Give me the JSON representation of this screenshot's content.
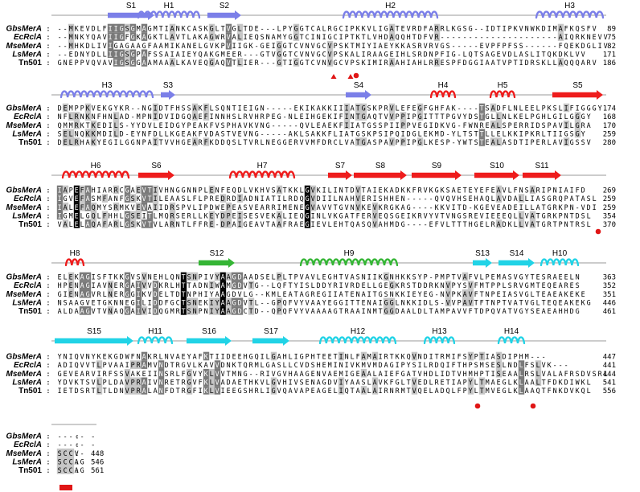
{
  "separator": ":",
  "blocks": [
    {
      "ss": [
        {
          "label": "S1",
          "type": "strand",
          "color": "#7b7fe8"
        },
        {
          "label": "H1",
          "type": "helix",
          "color": "#7b7fe8"
        },
        {
          "label": "S2",
          "type": "strand",
          "color": "#7b7fe8"
        },
        {
          "label": "H2",
          "type": "helix",
          "color": "#7b7fe8"
        },
        {
          "label": "H3",
          "type": "helix",
          "color": "#7b7fe8"
        }
      ],
      "rows": [
        {
          "name": "GbsMerA",
          "seq": "--MKEVDLFIIGSGMAGMTIANKCASKGLTVGLTDE---LPYGGTCALRGCIPKKVLIGATEVRDFARRLKGSG--IDTIPKVNWKDIMAFKQSFV",
          "end": "89"
        },
        {
          "name": "EcRclA",
          "seq": "--MNKYQAVIIGFGKAGKTLAVTLAKAGWRVALIEQSNAMYGGTCINIGCIPTKTLVHDAQQHTDFVR---------------------AIQRKNEVV",
          "end": "75"
        },
        {
          "name": "MseMerA",
          "seq": "--MHKDLIVIGAGAAGFAAMIKANELGVKPVIIGK-GEIGGTCVNVGCVPSKTMIYIAEYKKASRVRVGS-----EVPFPFSS------FQEKDGLIV",
          "end": "82"
        },
        {
          "name": "LsMerA",
          "seq": "--EDNYDLLIIGSGPAFSSAIAIEYQAKGMEER---GTVGGTCVNVGCVPSKALIRAAGEIHLSRDNPFIG-LQTSAGEVDLASLITQKDKLVV",
          "end": "171"
        },
        {
          "name": "Tn501",
          "seq": "GNEPPVQVAVIGSGGAAMAAALKAVEQGAQVTLIER---GTIGGTCVNVGCVPSKIMIRAAHIAHLRRESPFDGGIAATVPTIDRSKLLAQQQARV",
          "end": "186"
        }
      ],
      "markers": [
        {
          "kind": "tri"
        },
        {
          "kind": "tri"
        },
        {
          "kind": "dot"
        }
      ]
    },
    {
      "ss": [
        {
          "label": "H3",
          "type": "helix",
          "color": "#7b7fe8"
        },
        {
          "label": "S3",
          "type": "strand",
          "color": "#7b7fe8"
        },
        {
          "label": "S4",
          "type": "strand",
          "color": "#7b7fe8"
        },
        {
          "label": "H4",
          "type": "helix",
          "color": "#ee1c1c"
        },
        {
          "label": "H5",
          "type": "helix",
          "color": "#ee1c1c"
        },
        {
          "label": "S5",
          "type": "strand",
          "color": "#ee1c1c"
        }
      ],
      "rows": [
        {
          "name": "GbsMerA",
          "seq": "DEMPPKVEKGYKR--NGIDTFHSSAKFLSQNTIEIGN-----EKIKAKKIIIATGSKPRVLEFEGFGHFAK----TSADFLNLEELPKSLIFIGGGY",
          "end": "174"
        },
        {
          "name": "EcRclA",
          "seq": "NFLRNKNFHNLAD-MPNIDVIDGQAEFINNHSLRVHRPEG-NLEIHGEKIFINTGAQTVVPPIPGITTTPGVYDSTGLLNLKELPGHLGILGGGY",
          "end": "168"
        },
        {
          "name": "MseMerA",
          "seq": "QMMRKTKEDILS-YYDVLEIDGYPEAKFVSPHAVKVNG-----QVLEAEKFIIATGSSPIIPPVEGIDKVG-FWNREALSPERRIDSPAVILGRA",
          "end": "170"
        },
        {
          "name": "LsMerA",
          "seq": "SELNQKKMDILD-EYNFDLLKGEAKFVDASTVEVNG-----AKLSAKKFLIATGSKPSIPQIDGLEKMD-YLTSTTLLELKKIPKRLTIIGSGY",
          "end": "259"
        },
        {
          "name": "Tn501",
          "seq": "DELRHAKYEGILGGNPAITVVHGEARFKDDQSLTVRLNEGGERVVMFDRCLVATGASPAVPPIPGLKESP-YWTSTEALASDTIPERLAVIGSSV",
          "end": "280"
        }
      ],
      "markers": [
        {
          "kind": "dot"
        }
      ]
    },
    {
      "ss": [
        {
          "label": "H6",
          "type": "helix",
          "color": "#ee1c1c"
        },
        {
          "label": "S6",
          "type": "strand",
          "color": "#ee1c1c"
        },
        {
          "label": "H7",
          "type": "helix",
          "color": "#ee1c1c"
        },
        {
          "label": "S7",
          "type": "strand",
          "color": "#ee1c1c"
        },
        {
          "label": "S8",
          "type": "strand",
          "color": "#ee1c1c"
        },
        {
          "label": "S9",
          "type": "strand",
          "color": "#ee1c1c"
        },
        {
          "label": "S10",
          "type": "strand",
          "color": "#ee1c1c"
        },
        {
          "label": "S11",
          "type": "strand",
          "color": "#ee1c1c"
        }
      ],
      "rows": [
        {
          "name": "GbsMerA",
          "seq": "IAPEFAHIARRCGAEVTIVHNGGNNPLENFEQDLVKHVSATKKLGVKILINTDVTAIEKADKKFRVKGKSAETEYEFEAVLFNSARIPNIAIFD",
          "end": "269"
        },
        {
          "name": "EcRclA",
          "seq": "IGVEFASMFANFGSKVTILEAASLFLPREDRDIADNIATILRDQGVDIILNAHVERISHHEN-----QVQVHSEHAQLAVDALLIASGRQPATASL",
          "end": "259"
        },
        {
          "name": "MseMerA",
          "seq": "IALEFAQMYSRMKVEVAIIDRSPVLIPDWEPEASVEARRIMENEGVAVVTGVNVKEVKRGKAG----KKVITD-KGEVEADEILLATGRKPN-VDI",
          "end": "259"
        },
        {
          "name": "LsMerA",
          "seq": "IGMELGQLFHHLGSEITLMQRSERLLKEYDPEISESVEKALIEQGINLVKGATFERVEQSGEIKRVYVTVNGSREVIEEEQLLVATGRKPNTDSL",
          "end": "354"
        },
        {
          "name": "Tn501",
          "seq": "VALELAQAFARLGSKVTVLARNTLFFRE-DPAIGEAVTAAFRAEGIEVLEHTQASQVAHMDG----EFVLTTTHGELRADKLLVATGRTPNTRSL",
          "end": "370"
        }
      ],
      "markers": []
    },
    {
      "ss": [
        {
          "label": "H8",
          "type": "helix",
          "color": "#ee1c1c"
        },
        {
          "label": "S12",
          "type": "strand",
          "color": "#35b535"
        },
        {
          "label": "H9",
          "type": "helix",
          "color": "#35b535"
        },
        {
          "label": "S13",
          "type": "strand",
          "color": "#21d3e6"
        },
        {
          "label": "S14",
          "type": "strand",
          "color": "#21d3e6"
        },
        {
          "label": "H10",
          "type": "helix",
          "color": "#21d3e6"
        }
      ],
      "rows": [
        {
          "name": "GbsMerA",
          "seq": "ELEKAGISFTKKGVSVNEHLQNTSNPIVYAAGDAADSELPLTPVAVLEGHTVASNIIKGNHKKSYP-PMPTVAFVLPEMASVGYTESRAEELN",
          "end": "363"
        },
        {
          "name": "EcRclA",
          "seq": "HPENAGIAVNERGAIVVDKRLHTTADNIWAMGDVTG--LQFTYISLDDYRIVRDELLGEGKRSTDDRKNVPYSVFMTPPLSRVGMTEQEARES",
          "end": "352"
        },
        {
          "name": "MseMerA",
          "seq": "GIENAGVRLNERGGIKVDELTDTNPHIYAAGDVLG--KMLEATAGREGIIATENAITGSNKKIEYEG-NVPKAVFTNPEIASVGLTEAEAKEKE",
          "end": "351"
        },
        {
          "name": "LsMerA",
          "seq": "NSAAGVETGKNNEGILIDDFGCTSNEKIYAAGDVTL--GPQFVYVAAYEGGITTENAIGGLNKKIDLS-VVPAVTFTNPTVATVGLTEQEAKEKG",
          "end": "446"
        },
        {
          "name": "Tn501",
          "seq": "ALDAAGVTVNAQGAIVIDQGMRTSNPNIYAAGDCTD--QPQFVYVAAAAGTRAAINMTGGDAALDLTAMPAVVFTDPQVATVGYSEAEAHHDG",
          "end": "461"
        }
      ],
      "markers": []
    },
    {
      "ss": [
        {
          "label": "S15",
          "type": "strand",
          "color": "#21d3e6"
        },
        {
          "label": "H11",
          "type": "helix",
          "color": "#21d3e6"
        },
        {
          "label": "S16",
          "type": "strand",
          "color": "#21d3e6"
        },
        {
          "label": "S17",
          "type": "strand",
          "color": "#21d3e6"
        },
        {
          "label": "H12",
          "type": "helix",
          "color": "#21d3e6"
        },
        {
          "label": "H13",
          "type": "helix",
          "color": "#21d3e6"
        },
        {
          "label": "H14",
          "type": "helix",
          "color": "#21d3e6"
        }
      ],
      "rows": [
        {
          "name": "GbsMerA",
          "seq": "YNIQVNYKEKGDWFNAKRLNVAEYAFKTIIDEEHGQILGAHLIGPHTEETINLFAMAIRTKKQVNDITRMIFSYPTIASDIPHM---",
          "end": "447"
        },
        {
          "name": "EcRclA",
          "seq": "ADIQVVTLPVAAIPRAMVNDTRGVLKAVVDNKTQRMLGASLLCVDSHEMINIVKMVMDAGIPYSILRDQIFTHPSMSESLNDLFSLVK---",
          "end": "441"
        },
        {
          "name": "MseMerA",
          "seq": "GEVEARVIRFSSVAKEIINSRLFGVYKLVVTMNG--RIVGVHAAGENVAEMIGEAALAIEFGATVHDLIDTVHMHPTISEAALRSLVALAFRSDVSRL",
          "end": "444"
        },
        {
          "name": "LsMerA",
          "seq": "YDVKTSVLPLDAVPRAIVNRETRGVFKLVADAETHKVLGVHIVSENAGDVIYAASLAVKFGLTVEDLRETIAPYLTMAEGLKLAALTFDKDIWKL",
          "end": "541"
        },
        {
          "name": "Tn501",
          "seq": "IETDSRTLTLDNVPRALANFDTRGFIKLVIEEGSHRLIGVQAVAPEAGELIQTAALAIRNRMTVQELADQLFPYLTMVEGLKLAAQTFNKDVKQL",
          "end": "556"
        }
      ],
      "markers": [
        {
          "kind": "dot"
        },
        {
          "kind": "dot"
        }
      ]
    },
    {
      "ss": [],
      "rows": [
        {
          "name": "GbsMerA",
          "seq": "-----",
          "end": "-"
        },
        {
          "name": "EcRclA",
          "seq": "-----",
          "end": "-"
        },
        {
          "name": "MseMerA",
          "seq": "SCCV-",
          "end": "448"
        },
        {
          "name": "LsMerA",
          "seq": "SCCAG",
          "end": "546"
        },
        {
          "name": "Tn501",
          "seq": "SCCAG",
          "end": "561"
        }
      ],
      "markers": [
        {
          "kind": "box"
        }
      ]
    }
  ]
}
